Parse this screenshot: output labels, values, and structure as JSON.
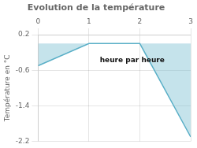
{
  "chart_data": {
    "type": "area",
    "title": "Evolution de la température",
    "x": [
      0,
      1,
      2,
      3
    ],
    "values": [
      -0.5,
      0.0,
      0.0,
      -2.1
    ],
    "color": "#5aafc7",
    "xlim": [
      0,
      3
    ],
    "ylim": [
      -2.2,
      0.2
    ],
    "xticks": [
      0,
      1,
      2,
      3
    ],
    "yticks": [
      0.2,
      -0.6,
      -1.4,
      -2.2
    ],
    "ylabel": "Température en °C",
    "annotations": [
      {
        "text": "heure par heure",
        "x": 1.85,
        "y": -0.38
      }
    ],
    "grid": true
  }
}
